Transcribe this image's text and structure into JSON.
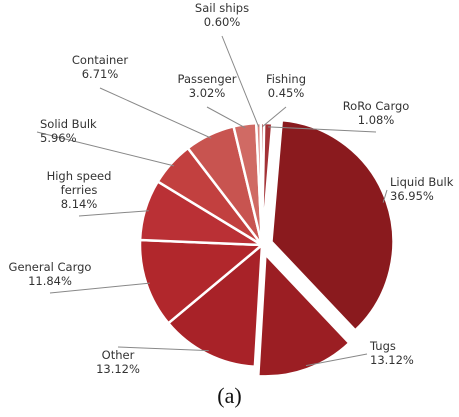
{
  "chart_data": {
    "type": "pie",
    "slices": [
      {
        "name": "Liquid Bulk",
        "value": 36.95,
        "pct_label": "36.95%",
        "color": "#8a1a1e"
      },
      {
        "name": "Tugs",
        "value": 13.12,
        "pct_label": "13.12%",
        "color": "#9b1e23"
      },
      {
        "name": "Other",
        "value": 13.12,
        "pct_label": "13.12%",
        "color": "#a82228"
      },
      {
        "name": "General Cargo",
        "value": 11.84,
        "pct_label": "11.84%",
        "color": "#b1272c"
      },
      {
        "name": "High speed ferries",
        "value": 8.14,
        "pct_label": "8.14%",
        "color": "#ba3035"
      },
      {
        "name": "Solid Bulk",
        "value": 5.96,
        "pct_label": "5.96%",
        "color": "#c2403f"
      },
      {
        "name": "Container",
        "value": 6.71,
        "pct_label": "6.71%",
        "color": "#c85450"
      },
      {
        "name": "Passenger",
        "value": 3.02,
        "pct_label": "3.02%",
        "color": "#d06a64"
      },
      {
        "name": "Sail ships",
        "value": 0.6,
        "pct_label": "0.60%",
        "color": "#d88580"
      },
      {
        "name": "Fishing",
        "value": 0.45,
        "pct_label": "0.45%",
        "color": "#b5484a"
      },
      {
        "name": "RoRo Cargo",
        "value": 1.08,
        "pct_label": "1.08%",
        "color": "#a33236"
      }
    ],
    "exploded": [
      "Liquid Bulk",
      "Tugs"
    ]
  },
  "caption": "(a)"
}
